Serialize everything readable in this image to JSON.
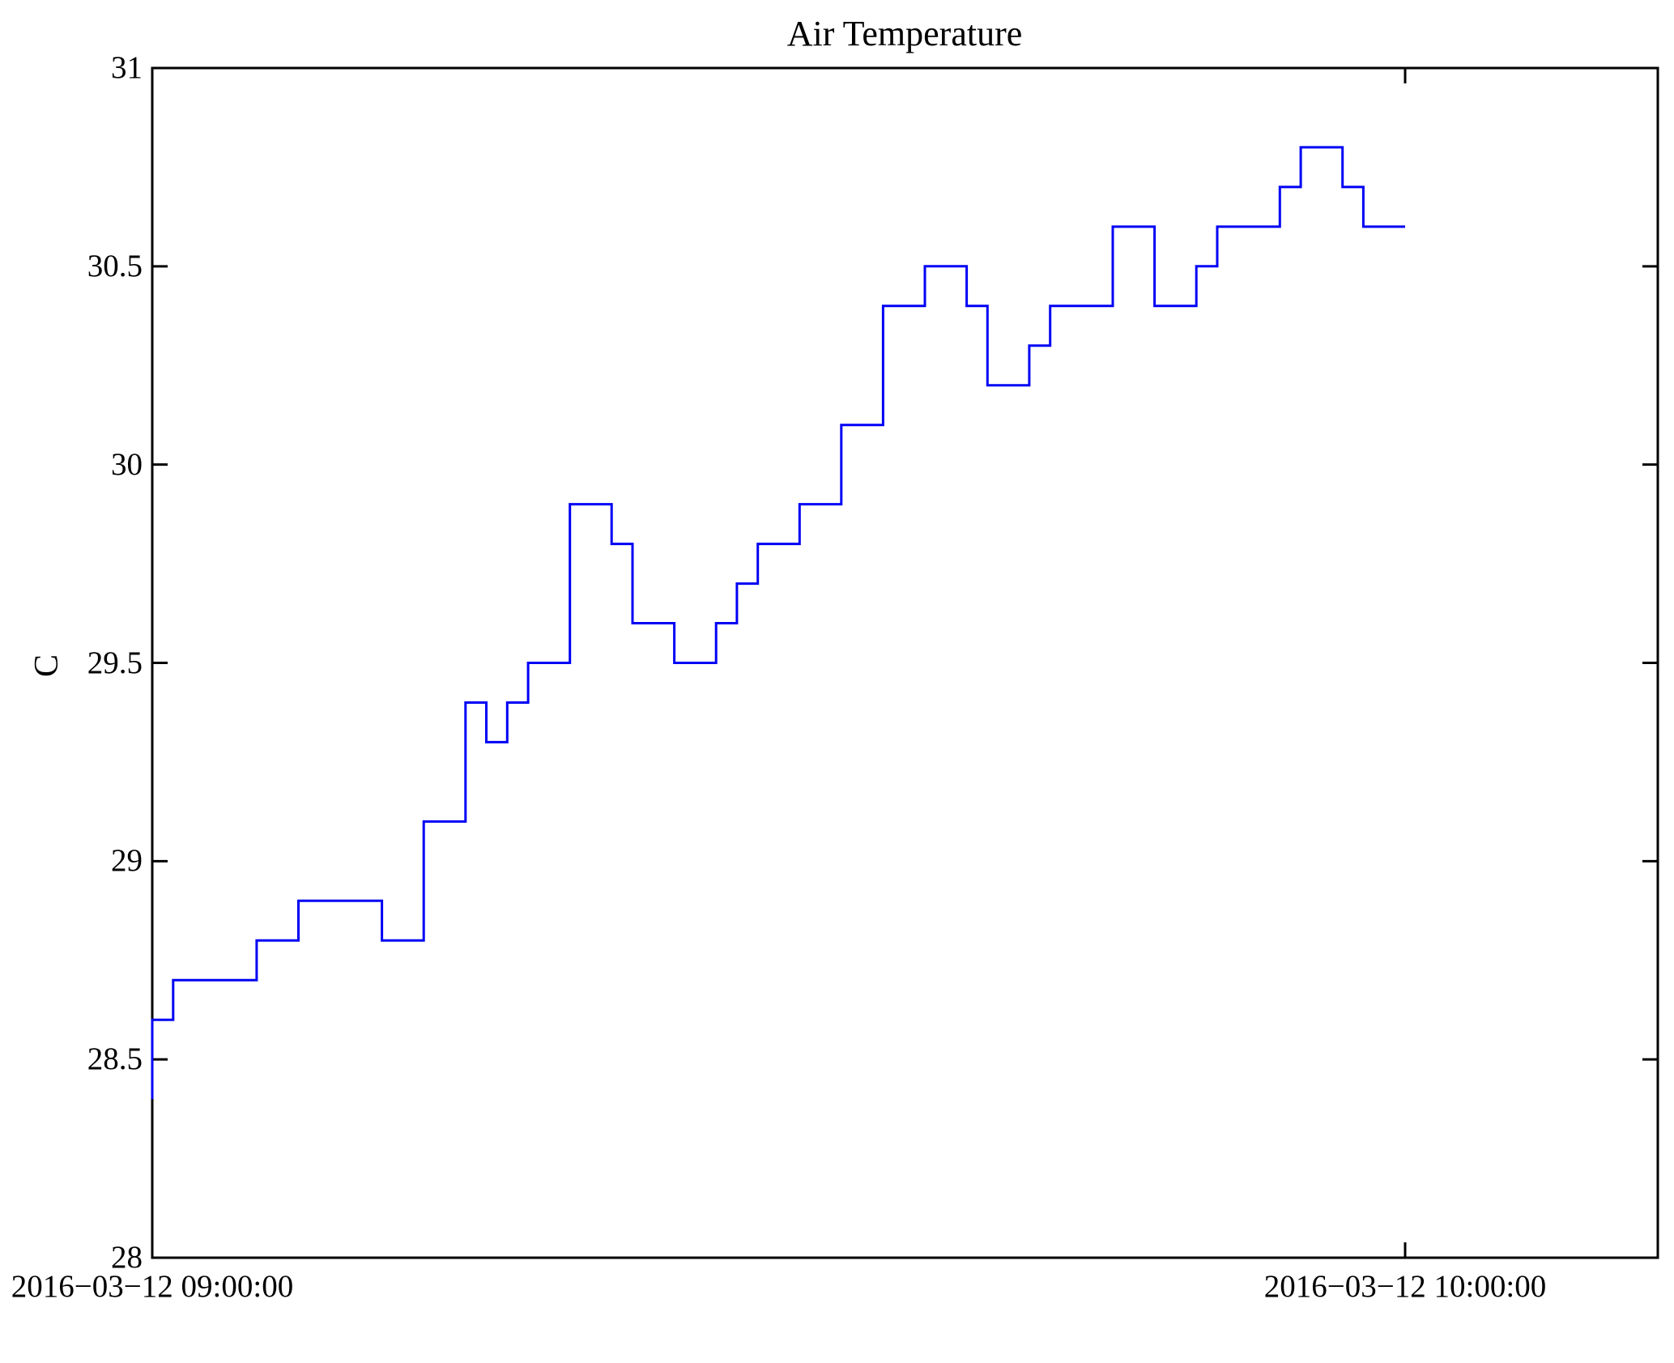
{
  "figure": {
    "title": "Air Temperature",
    "ylabel": "C"
  },
  "chart_data": {
    "type": "line",
    "style": "step-post",
    "title": "Air Temperature",
    "xlabel": "",
    "ylabel": "C",
    "line_color": "#0000F5",
    "axis_color": "#000000",
    "background_color": "#FFFFFF",
    "grid": false,
    "legend": "none",
    "ylim": [
      28,
      31
    ],
    "y_ticks": [
      28,
      28.5,
      29,
      29.5,
      30,
      30.5,
      31
    ],
    "y_tick_labels": [
      "28",
      "28.5",
      "29",
      "29.5",
      "30",
      "30.5",
      "31"
    ],
    "x_unit": "minutes after 2016-03-12 09:00:00",
    "xlim_minutes": [
      0,
      72
    ],
    "x_ticks": [
      {
        "minute": 0,
        "label": "2016−03−12 09:00:00"
      },
      {
        "minute": 60,
        "label": "2016−03−12 10:00:00"
      }
    ],
    "series_name": "Air Temperature (C)",
    "start_point": {
      "minute": 0,
      "temp_c": 28.4
    },
    "segments": [
      {
        "from_min": 0,
        "to_min": 1,
        "temp_c": 28.6
      },
      {
        "from_min": 1,
        "to_min": 5,
        "temp_c": 28.7
      },
      {
        "from_min": 5,
        "to_min": 7,
        "temp_c": 28.8
      },
      {
        "from_min": 7,
        "to_min": 11,
        "temp_c": 28.9
      },
      {
        "from_min": 11,
        "to_min": 13,
        "temp_c": 28.8
      },
      {
        "from_min": 13,
        "to_min": 15,
        "temp_c": 29.1
      },
      {
        "from_min": 15,
        "to_min": 16,
        "temp_c": 29.4
      },
      {
        "from_min": 16,
        "to_min": 17,
        "temp_c": 29.3
      },
      {
        "from_min": 17,
        "to_min": 18,
        "temp_c": 29.4
      },
      {
        "from_min": 18,
        "to_min": 20,
        "temp_c": 29.5
      },
      {
        "from_min": 20,
        "to_min": 22,
        "temp_c": 29.9
      },
      {
        "from_min": 22,
        "to_min": 23,
        "temp_c": 29.8
      },
      {
        "from_min": 23,
        "to_min": 25,
        "temp_c": 29.6
      },
      {
        "from_min": 25,
        "to_min": 27,
        "temp_c": 29.5
      },
      {
        "from_min": 27,
        "to_min": 28,
        "temp_c": 29.6
      },
      {
        "from_min": 28,
        "to_min": 29,
        "temp_c": 29.7
      },
      {
        "from_min": 29,
        "to_min": 31,
        "temp_c": 29.8
      },
      {
        "from_min": 31,
        "to_min": 33,
        "temp_c": 29.9
      },
      {
        "from_min": 33,
        "to_min": 35,
        "temp_c": 30.1
      },
      {
        "from_min": 35,
        "to_min": 37,
        "temp_c": 30.4
      },
      {
        "from_min": 37,
        "to_min": 39,
        "temp_c": 30.5
      },
      {
        "from_min": 39,
        "to_min": 40,
        "temp_c": 30.4
      },
      {
        "from_min": 40,
        "to_min": 42,
        "temp_c": 30.2
      },
      {
        "from_min": 42,
        "to_min": 43,
        "temp_c": 30.3
      },
      {
        "from_min": 43,
        "to_min": 46,
        "temp_c": 30.4
      },
      {
        "from_min": 46,
        "to_min": 48,
        "temp_c": 30.6
      },
      {
        "from_min": 48,
        "to_min": 50,
        "temp_c": 30.4
      },
      {
        "from_min": 50,
        "to_min": 51,
        "temp_c": 30.5
      },
      {
        "from_min": 51,
        "to_min": 54,
        "temp_c": 30.6
      },
      {
        "from_min": 54,
        "to_min": 55,
        "temp_c": 30.7
      },
      {
        "from_min": 55,
        "to_min": 57,
        "temp_c": 30.8
      },
      {
        "from_min": 57,
        "to_min": 58,
        "temp_c": 30.7
      },
      {
        "from_min": 58,
        "to_min": 60,
        "temp_c": 30.6
      }
    ]
  }
}
